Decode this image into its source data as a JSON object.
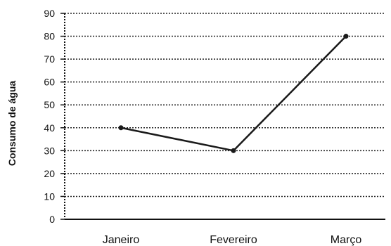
{
  "chart_data": {
    "type": "line",
    "title": "",
    "xlabel": "",
    "ylabel": "Consumo de água",
    "categories": [
      "Janeiro",
      "Fevereiro",
      "Março"
    ],
    "values": [
      40,
      30,
      80
    ],
    "ylim": [
      0,
      90
    ],
    "yticks": [
      0,
      10,
      20,
      30,
      40,
      50,
      60,
      70,
      80,
      90
    ],
    "grid": "horizontal dotted",
    "legend": "none",
    "colors": {
      "line": "#1a1a1a",
      "grid": "#222222",
      "axis": "#111111"
    }
  }
}
